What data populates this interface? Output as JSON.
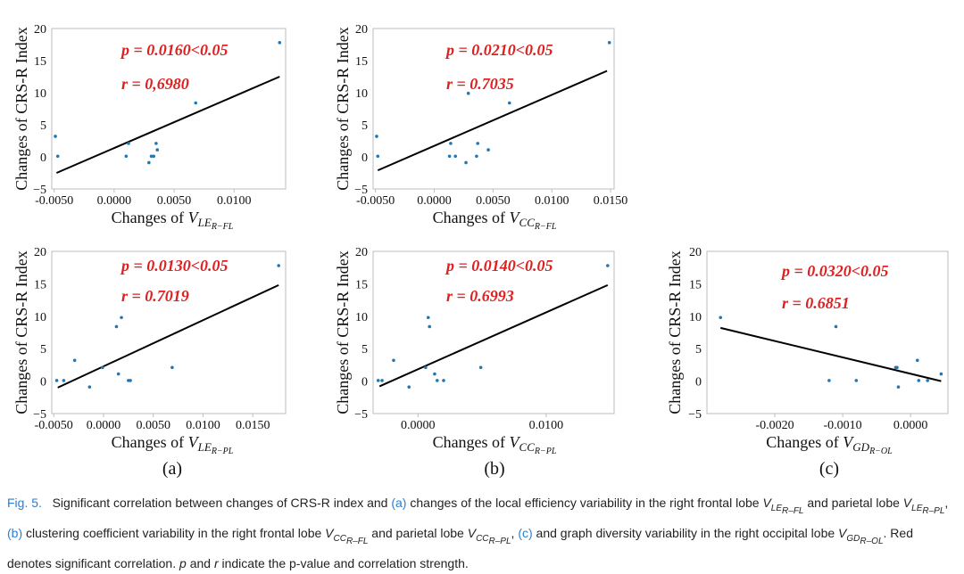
{
  "figure": {
    "ylabel": "Changes of CRS-R Index",
    "panel_labels": [
      "(a)",
      "(b)",
      "(c)"
    ]
  },
  "caption": {
    "fig_label": "Fig. 5.",
    "text_1": "Significant correlation between changes of CRS-R index and",
    "ref_a": "(a)",
    "text_2": "changes of the local efficiency variability in the right frontal lobe",
    "var_a1": "V",
    "var_a1_sub": "LE",
    "var_a1_subsub": "R–FL",
    "text_3": "and parietal lobe",
    "var_a2_sub": "LE",
    "var_a2_subsub": "R–PL",
    "ref_b": "(b)",
    "text_4": "clustering coefficient variability in the right frontal lobe",
    "var_b1_sub": "CC",
    "var_b1_subsub": "R–FL",
    "text_5": "and parietal lobe",
    "var_b2_sub": "CC",
    "var_b2_subsub": "R–PL",
    "ref_c": "(c)",
    "text_6": "and graph diversity variability in the right occipital lobe",
    "var_c_sub": "GD",
    "var_c_subsub": "R–OL",
    "text_7": ". Red denotes significant correlation.",
    "p_sym": "p",
    "text_8": "and",
    "r_sym": "r",
    "text_9": "indicate the p-value and correlation strength."
  },
  "chart_data": [
    {
      "id": "a-top",
      "type": "scatter",
      "xlabel": "Changes of V",
      "xlabel_sub": "LE",
      "xlabel_subsub": "R−FL",
      "ylabel": "Changes of CRS-R Index",
      "xlim": [
        -0.0052,
        0.0143
      ],
      "ylim": [
        -5,
        20
      ],
      "xticks": [
        -0.005,
        0,
        0.005,
        0.01
      ],
      "xtick_labels": [
        "-0.0050",
        "0.0000",
        "0.0050",
        "0.0100"
      ],
      "yticks": [
        -5,
        0,
        5,
        10,
        15,
        20
      ],
      "ytick_labels": [
        "−5",
        "0",
        "5",
        "10",
        "15",
        "20"
      ],
      "p_text": "p = 0.0160<0.05",
      "r_text": "r = 0,6980",
      "x": [
        -0.0049,
        -0.0047,
        0.001,
        0.0012,
        0.0029,
        0.0031,
        0.0033,
        0.0035,
        0.0036,
        0.0068,
        0.0138
      ],
      "y": [
        3.2,
        0.1,
        0.1,
        2.1,
        -0.9,
        0.1,
        0.1,
        2.1,
        1.1,
        8.4,
        17.8
      ],
      "fit": {
        "x": [
          -0.0048,
          0.0138
        ],
        "y": [
          -2.5,
          12.5
        ]
      }
    },
    {
      "id": "b-top",
      "type": "scatter",
      "xlabel": "Changes of V",
      "xlabel_sub": "CC",
      "xlabel_subsub": "R−FL",
      "ylabel": "Changes of CRS-R Index",
      "xlim": [
        -0.0052,
        0.0153
      ],
      "ylim": [
        -5,
        20
      ],
      "xticks": [
        -0.005,
        0,
        0.005,
        0.01,
        0.015
      ],
      "xtick_labels": [
        "-0.0050",
        "0.0000",
        "0.0050",
        "0.0100",
        "0.0150"
      ],
      "yticks": [
        -5,
        0,
        5,
        10,
        15,
        20
      ],
      "ytick_labels": [
        "−5",
        "0",
        "5",
        "10",
        "15",
        "20"
      ],
      "p_text": "p = 0.0210<0.05",
      "r_text": "r = 0.7035",
      "x": [
        -0.0049,
        -0.0048,
        0.0013,
        0.0014,
        0.0018,
        0.0027,
        0.0029,
        0.0036,
        0.0037,
        0.0046,
        0.0064,
        0.0149
      ],
      "y": [
        3.2,
        0.1,
        0.1,
        2.1,
        0.1,
        -0.9,
        9.9,
        0.1,
        2.1,
        1.1,
        8.4,
        17.8
      ],
      "fit": {
        "x": [
          -0.0048,
          0.0147
        ],
        "y": [
          -2.1,
          13.4
        ]
      }
    },
    {
      "id": "a-bottom",
      "type": "scatter",
      "xlabel": "Changes of V",
      "xlabel_sub": "LE",
      "xlabel_subsub": "R−PL",
      "ylabel": "Changes of CRS-R Index",
      "xlim": [
        -0.0052,
        0.0183
      ],
      "ylim": [
        -5,
        20
      ],
      "xticks": [
        -0.005,
        0,
        0.005,
        0.01,
        0.015
      ],
      "xtick_labels": [
        "-0.0050",
        "0.0000",
        "0.0050",
        "0.0100",
        "0.0150"
      ],
      "yticks": [
        -5,
        0,
        5,
        10,
        15,
        20
      ],
      "ytick_labels": [
        "−5",
        "0",
        "5",
        "10",
        "15",
        "20"
      ],
      "p_text": "p = 0.0130<0.05",
      "r_text": "r = 0.7019",
      "x": [
        -0.0047,
        -0.004,
        -0.0029,
        -0.0014,
        -0.0001,
        0.0013,
        0.0015,
        0.0018,
        0.0025,
        0.0027,
        0.0069,
        0.0176
      ],
      "y": [
        0.1,
        0.1,
        3.2,
        -0.9,
        2.1,
        8.4,
        1.1,
        9.8,
        0.1,
        0.1,
        2.1,
        17.8
      ],
      "fit": {
        "x": [
          -0.0046,
          0.0176
        ],
        "y": [
          -1.0,
          14.8
        ]
      }
    },
    {
      "id": "b-bottom",
      "type": "scatter",
      "xlabel": "Changes of V",
      "xlabel_sub": "CC",
      "xlabel_subsub": "R−PL",
      "ylabel": "Changes of CRS-R Index",
      "xlim": [
        -0.0035,
        0.0153
      ],
      "ylim": [
        -5,
        20
      ],
      "xticks": [
        0,
        0.01
      ],
      "xtick_labels": [
        "0.0000",
        "0.0100"
      ],
      "yticks": [
        -5,
        0,
        5,
        10,
        15,
        20
      ],
      "ytick_labels": [
        "−5",
        "0",
        "5",
        "10",
        "15",
        "20"
      ],
      "p_text": "p = 0.0140<0.05",
      "r_text": "r = 0.6993",
      "x": [
        -0.0031,
        -0.0028,
        -0.0019,
        -0.0007,
        0.0006,
        0.0008,
        0.0009,
        0.0013,
        0.0015,
        0.002,
        0.0049,
        0.0148
      ],
      "y": [
        0.1,
        0.1,
        3.2,
        -0.9,
        2.1,
        9.8,
        8.4,
        1.1,
        0.1,
        0.1,
        2.1,
        17.8
      ],
      "fit": {
        "x": [
          -0.003,
          0.0148
        ],
        "y": [
          -0.8,
          14.8
        ]
      }
    },
    {
      "id": "c",
      "type": "scatter",
      "xlabel": "Changes of V",
      "xlabel_sub": "GD",
      "xlabel_subsub": "R−OL",
      "ylabel": "Changes of CRS-R Index",
      "xlim": [
        -0.003,
        0.00055
      ],
      "ylim": [
        -5,
        20
      ],
      "xticks": [
        -0.002,
        -0.001,
        0
      ],
      "xtick_labels": [
        "-0.0020",
        "-0.0010",
        "0.0000"
      ],
      "yticks": [
        -5,
        0,
        5,
        10,
        15,
        20
      ],
      "ytick_labels": [
        "−5",
        "0",
        "5",
        "10",
        "15",
        "20"
      ],
      "p_text": "p = 0.0320<0.05",
      "r_text": "r = 0.6851",
      "x": [
        -0.0028,
        -0.0012,
        -0.0011,
        -0.0008,
        -0.00022,
        -0.0002,
        -0.00018,
        0.0001,
        0.00012,
        0.00025,
        0.00045
      ],
      "y": [
        9.8,
        0.1,
        8.4,
        0.1,
        2.1,
        2.1,
        -0.9,
        3.2,
        0.1,
        0.1,
        1.1
      ],
      "fit": {
        "x": [
          -0.0028,
          0.00045
        ],
        "y": [
          8.2,
          0.0
        ]
      }
    }
  ]
}
